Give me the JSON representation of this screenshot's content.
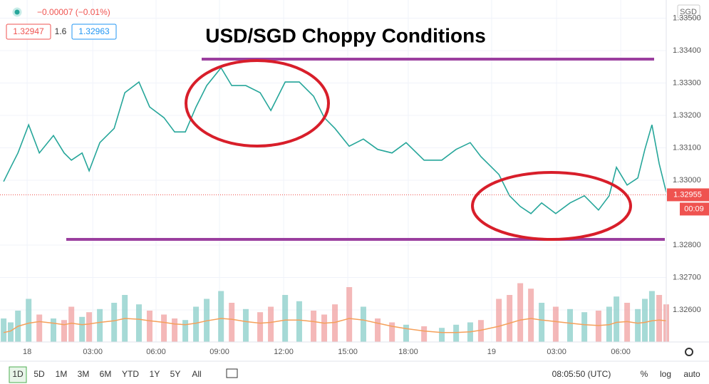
{
  "chart_data": {
    "type": "line",
    "title": "USD/SGD Choppy Conditions",
    "x": [
      -1.1,
      -0.77,
      -0.43,
      0.07,
      0.57,
      1.23,
      1.73,
      2.07,
      2.57,
      2.9,
      3.4,
      4.07,
      4.57,
      5.23,
      5.73,
      6.4,
      6.9,
      7.4,
      7.9,
      8.4,
      9.07,
      9.57,
      10.23,
      10.9,
      11.4,
      12.07,
      12.73,
      13.4,
      13.9,
      14.4,
      15.07,
      15.73,
      16.4,
      17.07,
      17.73,
      18.57,
      19.4,
      20.07,
      20.73,
      21.23,
      22.07,
      22.57,
      23.07,
      23.57,
      24.07,
      24.73,
      25.4,
      26.07,
      26.73,
      27.23,
      27.57,
      28.07,
      28.57,
      28.9,
      29.23,
      29.57,
      29.9
    ],
    "series": [
      {
        "type": "line",
        "color": "#26a69a",
        "values": [
          1.32996,
          1.3304,
          1.33084,
          1.33171,
          1.33084,
          1.33138,
          1.33084,
          1.33062,
          1.33084,
          1.33029,
          1.33116,
          1.3316,
          1.3327,
          1.33303,
          1.33226,
          1.33193,
          1.33149,
          1.33149,
          1.33226,
          1.33292,
          1.33347,
          1.33292,
          1.33292,
          1.3327,
          1.33215,
          1.33303,
          1.33303,
          1.33259,
          1.33193,
          1.3316,
          1.33105,
          1.33127,
          1.33095,
          1.33084,
          1.33116,
          1.33062,
          1.33062,
          1.33095,
          1.33116,
          1.33073,
          1.33018,
          1.32952,
          1.32919,
          1.32897,
          1.3293,
          1.32897,
          1.3293,
          1.32952,
          1.32908,
          1.32952,
          1.3304,
          1.32985,
          1.33007,
          1.33095,
          1.33171,
          1.33051,
          1.32963
        ]
      },
      {
        "type": "bar",
        "axis": "y2",
        "color": "#ef9a9a",
        "values": [
          30,
          25,
          40,
          55,
          35,
          30,
          28,
          45,
          32,
          38,
          42,
          50,
          60,
          48,
          40,
          35,
          30,
          28,
          45,
          55,
          65,
          50,
          42,
          38,
          45,
          60,
          52,
          40,
          35,
          48,
          70,
          45,
          30,
          25,
          22,
          20,
          18,
          22,
          25,
          28,
          55,
          60,
          75,
          68,
          50,
          45,
          42,
          38,
          40,
          45,
          58,
          50,
          42,
          55,
          65,
          60,
          48
        ]
      },
      {
        "type": "line",
        "axis": "y2",
        "color": "#f5a05a",
        "values": [
          12,
          14,
          20,
          24,
          26,
          24,
          22,
          24,
          22,
          23,
          25,
          27,
          30,
          29,
          27,
          25,
          23,
          22,
          24,
          27,
          30,
          29,
          26,
          24,
          25,
          28,
          28,
          26,
          24,
          25,
          30,
          28,
          24,
          20,
          17,
          14,
          12,
          12,
          13,
          15,
          20,
          24,
          28,
          30,
          28,
          26,
          24,
          22,
          21,
          22,
          25,
          26,
          24,
          25,
          27,
          28,
          27
        ]
      }
    ],
    "last_price": 1.32955,
    "countdown": "00:09",
    "xlim": [
      -1.27,
      29.9
    ],
    "xticks": [
      {
        "value": 0,
        "label": "18"
      },
      {
        "value": 3.07,
        "label": "03:00"
      },
      {
        "value": 6.03,
        "label": "06:00"
      },
      {
        "value": 9,
        "label": "09:00"
      },
      {
        "value": 12,
        "label": "12:00"
      },
      {
        "value": 15,
        "label": "15:00"
      },
      {
        "value": 17.83,
        "label": "18:00"
      },
      {
        "value": 21.73,
        "label": "19"
      },
      {
        "value": 24.77,
        "label": "03:00"
      },
      {
        "value": 27.77,
        "label": "06:00"
      }
    ],
    "ylim": [
      1.32501,
      1.33556
    ],
    "yticks": [
      {
        "value": 1.326,
        "label": "1.32600"
      },
      {
        "value": 1.327,
        "label": "1.32700"
      },
      {
        "value": 1.328,
        "label": "1.32800"
      },
      {
        "value": 1.33,
        "label": "1.33000"
      },
      {
        "value": 1.331,
        "label": "1.33100"
      },
      {
        "value": 1.332,
        "label": "1.33200"
      },
      {
        "value": 1.333,
        "label": "1.33300"
      },
      {
        "value": 1.334,
        "label": "1.33400"
      },
      {
        "value": 1.335,
        "label": "1.33500"
      }
    ],
    "y2lim": [
      0,
      100
    ],
    "grid": true
  },
  "header": {
    "change": "−0.00007 (−0.01%)",
    "bid": "1.32947",
    "spread": "1.6",
    "ask": "1.32963",
    "currency": "SGD"
  },
  "toolbar": {
    "ranges": [
      "1D",
      "5D",
      "1M",
      "3M",
      "6M",
      "YTD",
      "1Y",
      "5Y",
      "All"
    ],
    "clock": "08:05:50 (UTC)",
    "options": [
      "%",
      "log",
      "auto"
    ]
  }
}
